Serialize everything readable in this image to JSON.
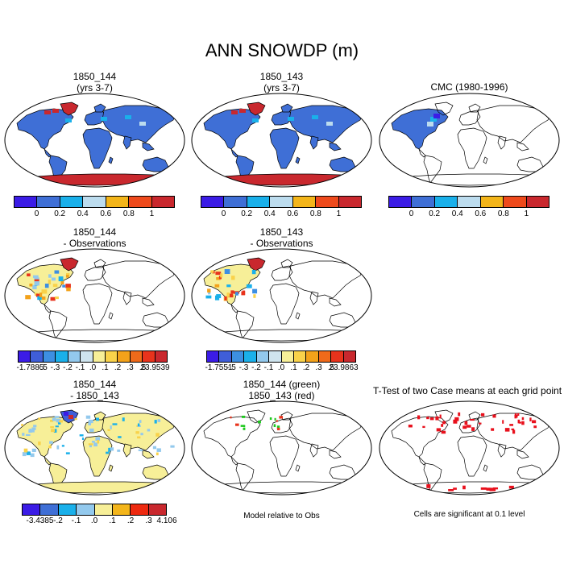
{
  "title": "ANN SNOWDP (m)",
  "chart_data": {
    "type": "heatmap",
    "variable": "SNOWDP",
    "units": "m",
    "season": "ANN",
    "panels": [
      {
        "title_line1": "1850_144",
        "title_line2": "(yrs 3-7)",
        "kind": "mean",
        "colorbar": "cb_mean"
      },
      {
        "title_line1": "1850_143",
        "title_line2": "(yrs 3-7)",
        "kind": "mean",
        "colorbar": "cb_mean"
      },
      {
        "title_line1": "CMC (1980-1996)",
        "title_line2": "",
        "kind": "obs",
        "colorbar": "cb_mean"
      },
      {
        "title_line1": "1850_144",
        "title_line2": "- Observations",
        "kind": "diff_obs",
        "colorbar": "cb_diff1"
      },
      {
        "title_line1": "1850_143",
        "title_line2": "- Observations",
        "kind": "diff_obs",
        "colorbar": "cb_diff2"
      },
      {
        "title_line1": "1850_144",
        "title_line2": "- 1850_143",
        "kind": "diff_cases",
        "colorbar": "cb_diff3"
      },
      {
        "title_line1": "1850_144 (green)",
        "title_line2": "1850_143 (red)",
        "kind": "relative",
        "colorbar": ""
      },
      {
        "title_line1": "T-Test of two Case means at each grid point",
        "title_line2": "",
        "kind": "ttest",
        "colorbar": ""
      }
    ],
    "colorbars": {
      "cb_mean": {
        "colors": [
          "#3b1ce6",
          "#3f6fd6",
          "#1ab0ea",
          "#bcdcee",
          "#f3b51a",
          "#ee4a1c",
          "#c9282e"
        ],
        "labels": [
          "0",
          "0.2",
          "0.4",
          "0.6",
          "0.8",
          "1"
        ]
      },
      "cb_diff1": {
        "colors": [
          "#3b1ce6",
          "#3f5ed8",
          "#3d8fe2",
          "#1ab0ea",
          "#93c9ed",
          "#cfe4ee",
          "#f7ef98",
          "#f9d24a",
          "#f3a21a",
          "#ef6a1a",
          "#e8331c",
          "#c9282e"
        ],
        "labels": [
          "-1.7885",
          "-.5",
          "-.3",
          "-.2",
          "-.1",
          ".0",
          ".1",
          ".2",
          ".3",
          ".5",
          "23.9539"
        ]
      },
      "cb_diff2": {
        "colors": [
          "#3b1ce6",
          "#3f5ed8",
          "#3d8fe2",
          "#1ab0ea",
          "#93c9ed",
          "#cfe4ee",
          "#f7ef98",
          "#f9d24a",
          "#f3a21a",
          "#ef6a1a",
          "#e8331c",
          "#c9282e"
        ],
        "labels": [
          "-1.7551",
          "-.5",
          "-.3",
          "-.2",
          "-.1",
          ".0",
          ".1",
          ".2",
          ".3",
          ".5",
          "23.9863"
        ]
      },
      "cb_diff3": {
        "colors": [
          "#3b1ce6",
          "#3f6fd6",
          "#1ab0ea",
          "#93c9ed",
          "#f7ef98",
          "#f3b51a",
          "#ee2a10",
          "#c9282e"
        ],
        "labels": [
          "-3.4385",
          "-.2",
          "-.1",
          ".0",
          ".1",
          ".2",
          ".3",
          "4.106"
        ]
      }
    },
    "notes": {
      "relative": "Model relative to Obs",
      "ttest": "Cells are significant at 0.1 level"
    }
  }
}
